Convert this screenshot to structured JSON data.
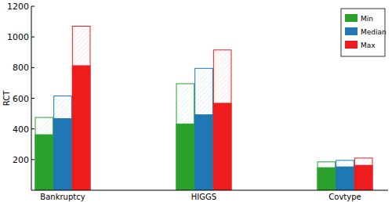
{
  "chart_data": {
    "type": "bar",
    "y_label": "RCT",
    "categories": [
      "Bankruptcy",
      "HIGGS",
      "Covtype"
    ],
    "series": [
      {
        "name": "Min",
        "color": "#2ca02c",
        "values": [
          365,
          435,
          150
        ],
        "upper_values": [
          475,
          695,
          185
        ]
      },
      {
        "name": "Median",
        "color": "#1f77b4",
        "values": [
          470,
          495,
          155
        ],
        "upper_values": [
          615,
          795,
          195
        ]
      },
      {
        "name": "Max",
        "color": "#ee1c1c",
        "values": [
          815,
          570,
          165
        ],
        "upper_values": [
          1070,
          915,
          210
        ]
      }
    ],
    "ylim": [
      0,
      1200
    ],
    "yticks": [
      200,
      400,
      600,
      800,
      1000,
      1200
    ],
    "legend": "upper right",
    "grid": false
  }
}
